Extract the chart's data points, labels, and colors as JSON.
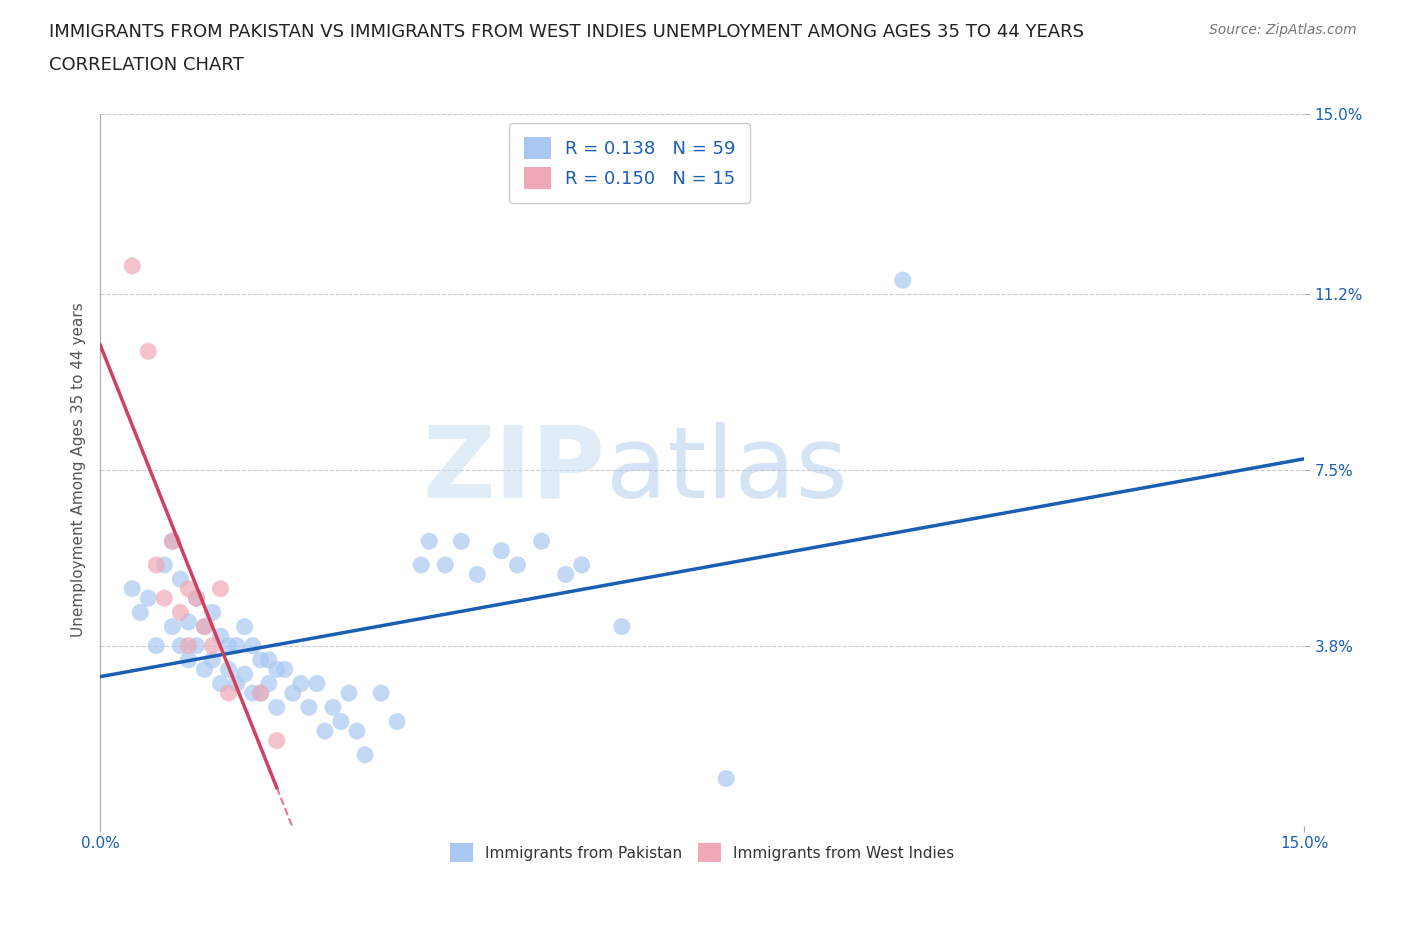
{
  "title_line1": "IMMIGRANTS FROM PAKISTAN VS IMMIGRANTS FROM WEST INDIES UNEMPLOYMENT AMONG AGES 35 TO 44 YEARS",
  "title_line2": "CORRELATION CHART",
  "source": "Source: ZipAtlas.com",
  "ylabel": "Unemployment Among Ages 35 to 44 years",
  "xmin": 0.0,
  "xmax": 0.15,
  "ymin": 0.0,
  "ymax": 0.15,
  "yticks": [
    0.038,
    0.075,
    0.112,
    0.15
  ],
  "ytick_labels": [
    "3.8%",
    "7.5%",
    "11.2%",
    "15.0%"
  ],
  "xtick_labels": [
    "0.0%",
    "15.0%"
  ],
  "r_pakistan": 0.138,
  "n_pakistan": 59,
  "r_westindies": 0.15,
  "n_westindies": 15,
  "color_pakistan": "#a8c8f0",
  "color_westindies": "#f0a8b8",
  "line_color_pakistan": "#1a5fb4",
  "line_color_westindies": "#d04060",
  "pakistan_scatter": [
    [
      0.004,
      0.05
    ],
    [
      0.005,
      0.045
    ],
    [
      0.006,
      0.048
    ],
    [
      0.007,
      0.038
    ],
    [
      0.008,
      0.055
    ],
    [
      0.009,
      0.06
    ],
    [
      0.009,
      0.042
    ],
    [
      0.01,
      0.052
    ],
    [
      0.01,
      0.038
    ],
    [
      0.011,
      0.043
    ],
    [
      0.011,
      0.035
    ],
    [
      0.012,
      0.048
    ],
    [
      0.012,
      0.038
    ],
    [
      0.013,
      0.042
    ],
    [
      0.013,
      0.033
    ],
    [
      0.014,
      0.045
    ],
    [
      0.014,
      0.035
    ],
    [
      0.015,
      0.04
    ],
    [
      0.015,
      0.03
    ],
    [
      0.016,
      0.038
    ],
    [
      0.016,
      0.033
    ],
    [
      0.017,
      0.038
    ],
    [
      0.017,
      0.03
    ],
    [
      0.018,
      0.042
    ],
    [
      0.018,
      0.032
    ],
    [
      0.019,
      0.038
    ],
    [
      0.019,
      0.028
    ],
    [
      0.02,
      0.035
    ],
    [
      0.02,
      0.028
    ],
    [
      0.021,
      0.035
    ],
    [
      0.021,
      0.03
    ],
    [
      0.022,
      0.033
    ],
    [
      0.022,
      0.025
    ],
    [
      0.023,
      0.033
    ],
    [
      0.024,
      0.028
    ],
    [
      0.025,
      0.03
    ],
    [
      0.026,
      0.025
    ],
    [
      0.027,
      0.03
    ],
    [
      0.028,
      0.02
    ],
    [
      0.029,
      0.025
    ],
    [
      0.03,
      0.022
    ],
    [
      0.031,
      0.028
    ],
    [
      0.032,
      0.02
    ],
    [
      0.033,
      0.015
    ],
    [
      0.035,
      0.028
    ],
    [
      0.037,
      0.022
    ],
    [
      0.04,
      0.055
    ],
    [
      0.041,
      0.06
    ],
    [
      0.043,
      0.055
    ],
    [
      0.045,
      0.06
    ],
    [
      0.047,
      0.053
    ],
    [
      0.05,
      0.058
    ],
    [
      0.052,
      0.055
    ],
    [
      0.055,
      0.06
    ],
    [
      0.058,
      0.053
    ],
    [
      0.06,
      0.055
    ],
    [
      0.065,
      0.042
    ],
    [
      0.078,
      0.01
    ],
    [
      0.1,
      0.115
    ]
  ],
  "westindies_scatter": [
    [
      0.004,
      0.118
    ],
    [
      0.006,
      0.1
    ],
    [
      0.007,
      0.055
    ],
    [
      0.008,
      0.048
    ],
    [
      0.009,
      0.06
    ],
    [
      0.01,
      0.045
    ],
    [
      0.011,
      0.05
    ],
    [
      0.011,
      0.038
    ],
    [
      0.012,
      0.048
    ],
    [
      0.013,
      0.042
    ],
    [
      0.014,
      0.038
    ],
    [
      0.015,
      0.05
    ],
    [
      0.016,
      0.028
    ],
    [
      0.02,
      0.028
    ],
    [
      0.022,
      0.018
    ]
  ],
  "watermark_zip": "ZIP",
  "watermark_atlas": "atlas",
  "title_fontsize": 13,
  "label_fontsize": 11,
  "tick_fontsize": 11
}
